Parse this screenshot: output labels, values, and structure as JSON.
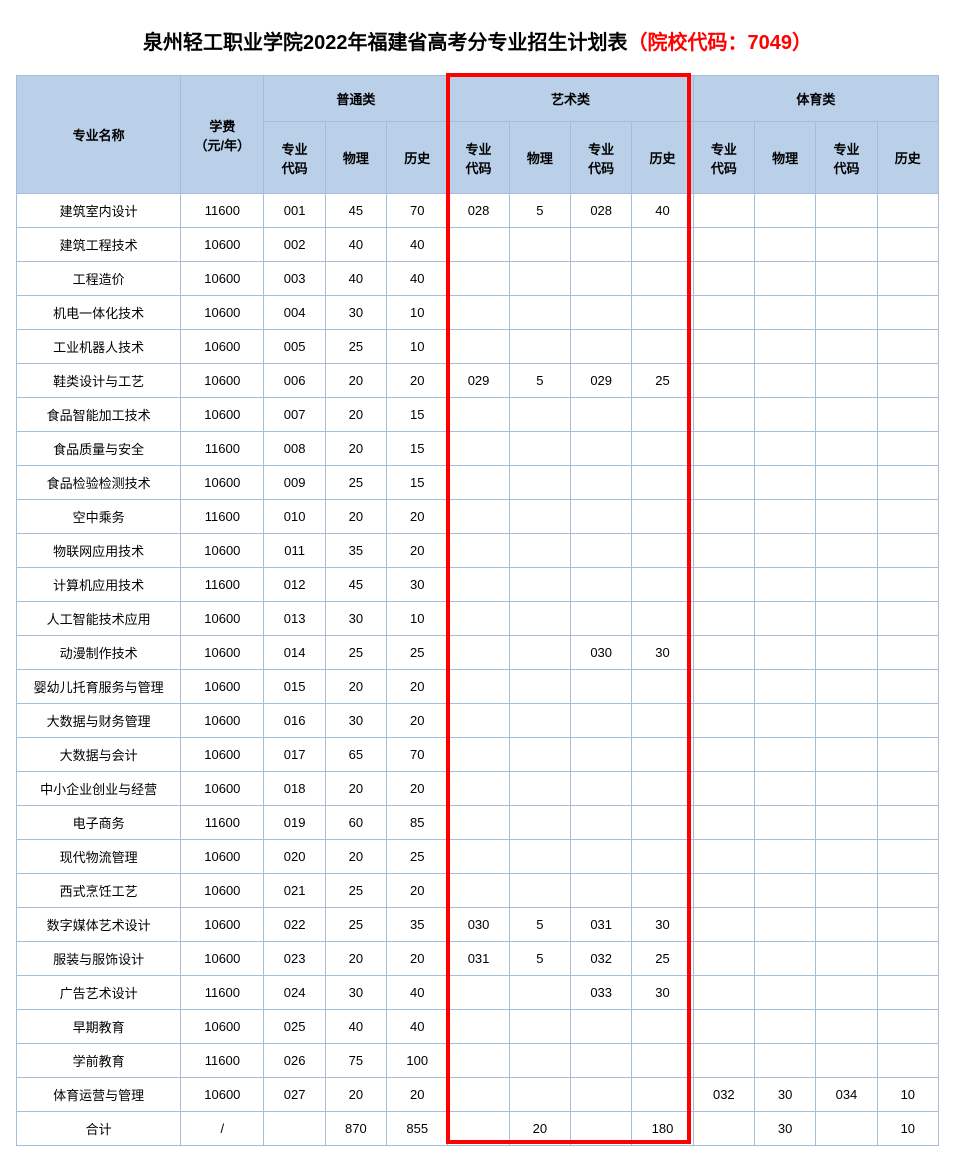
{
  "title_main": "泉州轻工职业学院2022年福建省高考分专业招生计划表",
  "title_red": "（院校代码：7049）",
  "headers": {
    "major": "专业名称",
    "fee": "学费\n（元/年）",
    "group_general": "普通类",
    "group_art": "艺术类",
    "group_sport": "体育类",
    "code": "专业\n代码",
    "physics": "物理",
    "history": "历史"
  },
  "rows": [
    {
      "name": "建筑室内设计",
      "fee": "11600",
      "g_code": "001",
      "g_phy": "45",
      "g_his": "70",
      "a_code1": "028",
      "a_phy": "5",
      "a_code2": "028",
      "a_his": "40",
      "s_code1": "",
      "s_phy": "",
      "s_code2": "",
      "s_his": ""
    },
    {
      "name": "建筑工程技术",
      "fee": "10600",
      "g_code": "002",
      "g_phy": "40",
      "g_his": "40",
      "a_code1": "",
      "a_phy": "",
      "a_code2": "",
      "a_his": "",
      "s_code1": "",
      "s_phy": "",
      "s_code2": "",
      "s_his": ""
    },
    {
      "name": "工程造价",
      "fee": "10600",
      "g_code": "003",
      "g_phy": "40",
      "g_his": "40",
      "a_code1": "",
      "a_phy": "",
      "a_code2": "",
      "a_his": "",
      "s_code1": "",
      "s_phy": "",
      "s_code2": "",
      "s_his": ""
    },
    {
      "name": "机电一体化技术",
      "fee": "10600",
      "g_code": "004",
      "g_phy": "30",
      "g_his": "10",
      "a_code1": "",
      "a_phy": "",
      "a_code2": "",
      "a_his": "",
      "s_code1": "",
      "s_phy": "",
      "s_code2": "",
      "s_his": ""
    },
    {
      "name": "工业机器人技术",
      "fee": "10600",
      "g_code": "005",
      "g_phy": "25",
      "g_his": "10",
      "a_code1": "",
      "a_phy": "",
      "a_code2": "",
      "a_his": "",
      "s_code1": "",
      "s_phy": "",
      "s_code2": "",
      "s_his": ""
    },
    {
      "name": "鞋类设计与工艺",
      "fee": "10600",
      "g_code": "006",
      "g_phy": "20",
      "g_his": "20",
      "a_code1": "029",
      "a_phy": "5",
      "a_code2": "029",
      "a_his": "25",
      "s_code1": "",
      "s_phy": "",
      "s_code2": "",
      "s_his": ""
    },
    {
      "name": "食品智能加工技术",
      "fee": "10600",
      "g_code": "007",
      "g_phy": "20",
      "g_his": "15",
      "a_code1": "",
      "a_phy": "",
      "a_code2": "",
      "a_his": "",
      "s_code1": "",
      "s_phy": "",
      "s_code2": "",
      "s_his": ""
    },
    {
      "name": "食品质量与安全",
      "fee": "11600",
      "g_code": "008",
      "g_phy": "20",
      "g_his": "15",
      "a_code1": "",
      "a_phy": "",
      "a_code2": "",
      "a_his": "",
      "s_code1": "",
      "s_phy": "",
      "s_code2": "",
      "s_his": ""
    },
    {
      "name": "食品检验检测技术",
      "fee": "10600",
      "g_code": "009",
      "g_phy": "25",
      "g_his": "15",
      "a_code1": "",
      "a_phy": "",
      "a_code2": "",
      "a_his": "",
      "s_code1": "",
      "s_phy": "",
      "s_code2": "",
      "s_his": ""
    },
    {
      "name": "空中乘务",
      "fee": "11600",
      "g_code": "010",
      "g_phy": "20",
      "g_his": "20",
      "a_code1": "",
      "a_phy": "",
      "a_code2": "",
      "a_his": "",
      "s_code1": "",
      "s_phy": "",
      "s_code2": "",
      "s_his": ""
    },
    {
      "name": "物联网应用技术",
      "fee": "10600",
      "g_code": "011",
      "g_phy": "35",
      "g_his": "20",
      "a_code1": "",
      "a_phy": "",
      "a_code2": "",
      "a_his": "",
      "s_code1": "",
      "s_phy": "",
      "s_code2": "",
      "s_his": ""
    },
    {
      "name": "计算机应用技术",
      "fee": "11600",
      "g_code": "012",
      "g_phy": "45",
      "g_his": "30",
      "a_code1": "",
      "a_phy": "",
      "a_code2": "",
      "a_his": "",
      "s_code1": "",
      "s_phy": "",
      "s_code2": "",
      "s_his": ""
    },
    {
      "name": "人工智能技术应用",
      "fee": "10600",
      "g_code": "013",
      "g_phy": "30",
      "g_his": "10",
      "a_code1": "",
      "a_phy": "",
      "a_code2": "",
      "a_his": "",
      "s_code1": "",
      "s_phy": "",
      "s_code2": "",
      "s_his": ""
    },
    {
      "name": "动漫制作技术",
      "fee": "10600",
      "g_code": "014",
      "g_phy": "25",
      "g_his": "25",
      "a_code1": "",
      "a_phy": "",
      "a_code2": "030",
      "a_his": "30",
      "s_code1": "",
      "s_phy": "",
      "s_code2": "",
      "s_his": ""
    },
    {
      "name": "婴幼儿托育服务与管理",
      "fee": "10600",
      "g_code": "015",
      "g_phy": "20",
      "g_his": "20",
      "a_code1": "",
      "a_phy": "",
      "a_code2": "",
      "a_his": "",
      "s_code1": "",
      "s_phy": "",
      "s_code2": "",
      "s_his": ""
    },
    {
      "name": "大数据与财务管理",
      "fee": "10600",
      "g_code": "016",
      "g_phy": "30",
      "g_his": "20",
      "a_code1": "",
      "a_phy": "",
      "a_code2": "",
      "a_his": "",
      "s_code1": "",
      "s_phy": "",
      "s_code2": "",
      "s_his": ""
    },
    {
      "name": "大数据与会计",
      "fee": "10600",
      "g_code": "017",
      "g_phy": "65",
      "g_his": "70",
      "a_code1": "",
      "a_phy": "",
      "a_code2": "",
      "a_his": "",
      "s_code1": "",
      "s_phy": "",
      "s_code2": "",
      "s_his": ""
    },
    {
      "name": "中小企业创业与经营",
      "fee": "10600",
      "g_code": "018",
      "g_phy": "20",
      "g_his": "20",
      "a_code1": "",
      "a_phy": "",
      "a_code2": "",
      "a_his": "",
      "s_code1": "",
      "s_phy": "",
      "s_code2": "",
      "s_his": ""
    },
    {
      "name": "电子商务",
      "fee": "11600",
      "g_code": "019",
      "g_phy": "60",
      "g_his": "85",
      "a_code1": "",
      "a_phy": "",
      "a_code2": "",
      "a_his": "",
      "s_code1": "",
      "s_phy": "",
      "s_code2": "",
      "s_his": ""
    },
    {
      "name": "现代物流管理",
      "fee": "10600",
      "g_code": "020",
      "g_phy": "20",
      "g_his": "25",
      "a_code1": "",
      "a_phy": "",
      "a_code2": "",
      "a_his": "",
      "s_code1": "",
      "s_phy": "",
      "s_code2": "",
      "s_his": ""
    },
    {
      "name": "西式烹饪工艺",
      "fee": "10600",
      "g_code": "021",
      "g_phy": "25",
      "g_his": "20",
      "a_code1": "",
      "a_phy": "",
      "a_code2": "",
      "a_his": "",
      "s_code1": "",
      "s_phy": "",
      "s_code2": "",
      "s_his": ""
    },
    {
      "name": "数字媒体艺术设计",
      "fee": "10600",
      "g_code": "022",
      "g_phy": "25",
      "g_his": "35",
      "a_code1": "030",
      "a_phy": "5",
      "a_code2": "031",
      "a_his": "30",
      "s_code1": "",
      "s_phy": "",
      "s_code2": "",
      "s_his": ""
    },
    {
      "name": "服装与服饰设计",
      "fee": "10600",
      "g_code": "023",
      "g_phy": "20",
      "g_his": "20",
      "a_code1": "031",
      "a_phy": "5",
      "a_code2": "032",
      "a_his": "25",
      "s_code1": "",
      "s_phy": "",
      "s_code2": "",
      "s_his": ""
    },
    {
      "name": "广告艺术设计",
      "fee": "11600",
      "g_code": "024",
      "g_phy": "30",
      "g_his": "40",
      "a_code1": "",
      "a_phy": "",
      "a_code2": "033",
      "a_his": "30",
      "s_code1": "",
      "s_phy": "",
      "s_code2": "",
      "s_his": ""
    },
    {
      "name": "早期教育",
      "fee": "10600",
      "g_code": "025",
      "g_phy": "40",
      "g_his": "40",
      "a_code1": "",
      "a_phy": "",
      "a_code2": "",
      "a_his": "",
      "s_code1": "",
      "s_phy": "",
      "s_code2": "",
      "s_his": ""
    },
    {
      "name": "学前教育",
      "fee": "11600",
      "g_code": "026",
      "g_phy": "75",
      "g_his": "100",
      "a_code1": "",
      "a_phy": "",
      "a_code2": "",
      "a_his": "",
      "s_code1": "",
      "s_phy": "",
      "s_code2": "",
      "s_his": ""
    },
    {
      "name": "体育运营与管理",
      "fee": "10600",
      "g_code": "027",
      "g_phy": "20",
      "g_his": "20",
      "a_code1": "",
      "a_phy": "",
      "a_code2": "",
      "a_his": "",
      "s_code1": "032",
      "s_phy": "30",
      "s_code2": "034",
      "s_his": "10"
    }
  ],
  "total": {
    "name": "合计",
    "fee": "/",
    "g_code": "",
    "g_phy": "870",
    "g_his": "855",
    "a_code1": "",
    "a_phy": "20",
    "a_code2": "",
    "a_his": "180",
    "s_code1": "",
    "s_phy": "30",
    "s_code2": "",
    "s_his": "10"
  },
  "colors": {
    "header_bg": "#b9d0e8",
    "border": "#a6bdd9",
    "highlight": "#ff0000",
    "text": "#000000"
  },
  "highlight": {
    "note": "red box around art category columns",
    "col_start_index": 5,
    "col_span": 4
  }
}
